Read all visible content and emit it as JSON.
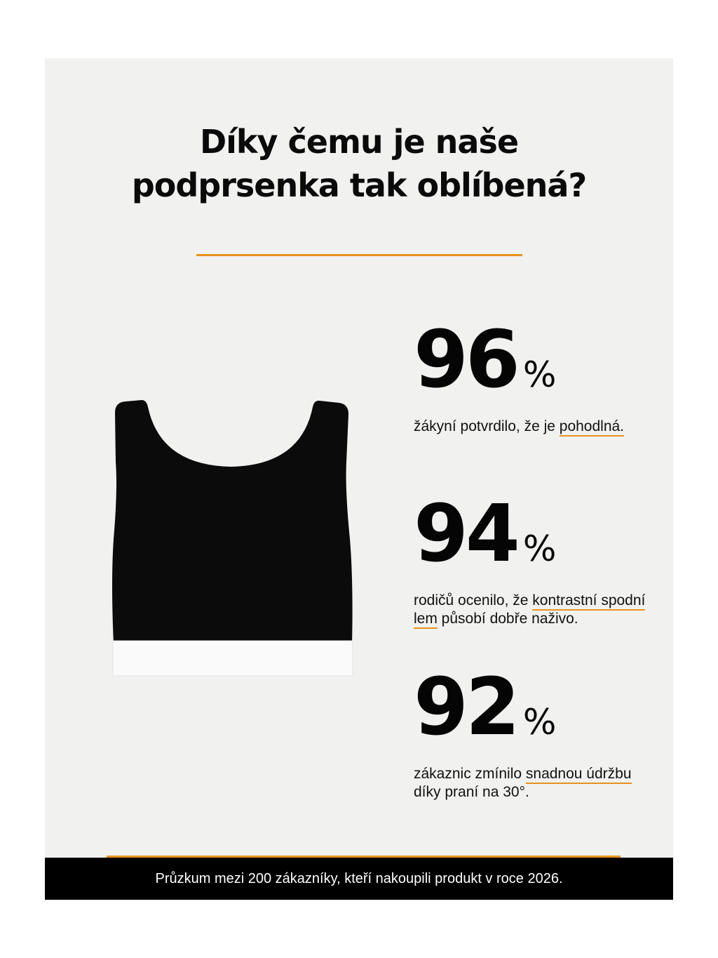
{
  "title": {
    "line1": "Díky čemu je naše",
    "line2": "podprsenka tak oblíbená?"
  },
  "accent_color": "#e8921f",
  "product_image": {
    "icon": "black-crop-top-with-white-band"
  },
  "stats": [
    {
      "value": "96",
      "unit": "%",
      "text": [
        {
          "t": "žákyní potvrdilo, že je "
        },
        {
          "t": "pohodlná.",
          "u": true
        }
      ]
    },
    {
      "value": "94",
      "unit": "%",
      "text": [
        {
          "t": "rodičů ocenilo, že "
        },
        {
          "t": "kontrastní spodní lem",
          "u": true
        },
        {
          "t": " působí dobře naživo."
        }
      ]
    },
    {
      "value": "92",
      "unit": "%",
      "text": [
        {
          "t": "zákaznic zmínilo "
        },
        {
          "t": "snadnou údržbu",
          "u": true
        },
        {
          "t": " díky praní na 30°."
        }
      ]
    }
  ],
  "footer": "Průzkum mezi 200 zákazníky, kteří nakoupili produkt v roce 2026."
}
